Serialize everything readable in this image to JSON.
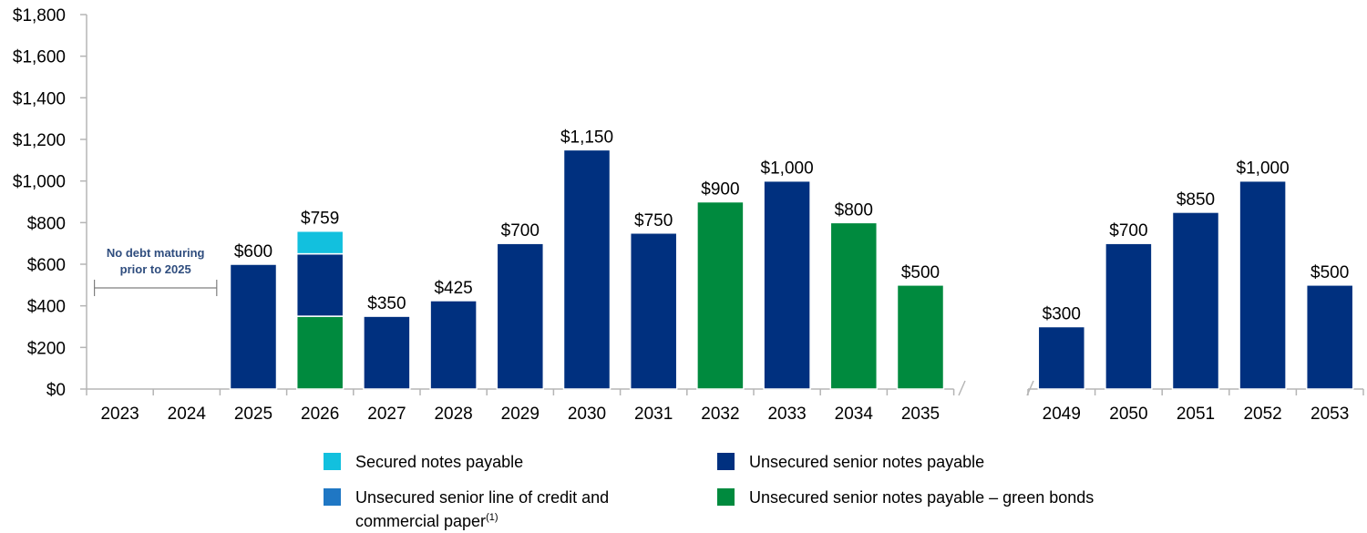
{
  "chart_data": {
    "type": "bar",
    "stacked": true,
    "title": "",
    "xlabel": "",
    "ylabel": "",
    "ylim": [
      0,
      1800
    ],
    "yticks": [
      "$0",
      "$200",
      "$400",
      "$600",
      "$800",
      "$1,000",
      "$1,200",
      "$1,400",
      "$1,600",
      "$1,800"
    ],
    "categories": [
      "2023",
      "2024",
      "2025",
      "2026",
      "2027",
      "2028",
      "2029",
      "2030",
      "2031",
      "2032",
      "2033",
      "2034",
      "2035",
      "2049",
      "2050",
      "2051",
      "2052",
      "2053"
    ],
    "axis_break_after": "2035",
    "series": [
      {
        "name": "Secured notes payable",
        "color": "#12c0de",
        "values": [
          0,
          0,
          0,
          109,
          0,
          0,
          0,
          0,
          0,
          0,
          0,
          0,
          0,
          0,
          0,
          0,
          0,
          0
        ]
      },
      {
        "name": "Unsecured senior line of credit and commercial paper",
        "color": "#1f77c4",
        "values": [
          0,
          0,
          0,
          0,
          0,
          0,
          0,
          0,
          0,
          0,
          0,
          0,
          0,
          0,
          0,
          0,
          0,
          0
        ]
      },
      {
        "name": "Unsecured senior notes payable",
        "color": "#00307f",
        "values": [
          0,
          0,
          600,
          300,
          350,
          425,
          700,
          1150,
          750,
          0,
          1000,
          0,
          0,
          300,
          700,
          850,
          1000,
          500
        ]
      },
      {
        "name": "Unsecured senior notes payable – green bonds",
        "color": "#008a3e",
        "values": [
          0,
          0,
          0,
          350,
          0,
          0,
          0,
          0,
          0,
          900,
          0,
          800,
          500,
          0,
          0,
          0,
          0,
          0
        ]
      }
    ],
    "stack_order": [
      3,
      2,
      1,
      0
    ],
    "data_labels": [
      "",
      "",
      "$600",
      "$759",
      "$350",
      "$425",
      "$700",
      "$1,150",
      "$750",
      "$900",
      "$1,000",
      "$800",
      "$500",
      "$300",
      "$700",
      "$850",
      "$1,000",
      "$500"
    ],
    "annotation": {
      "lines": [
        "No debt maturing",
        "prior to 2025"
      ],
      "from_category": "2023",
      "to_category": "2024"
    },
    "legend": {
      "position": "bottom",
      "items": [
        {
          "label": "Secured notes payable",
          "color": "#12c0de",
          "note": ""
        },
        {
          "label": "Unsecured senior notes payable",
          "color": "#00307f",
          "note": ""
        },
        {
          "label": "Unsecured senior line of credit and",
          "label_line2": "commercial paper",
          "color": "#1f77c4",
          "note": "(1)"
        },
        {
          "label": "Unsecured senior notes payable – green bonds",
          "color": "#008a3e",
          "note": ""
        }
      ]
    },
    "colors": {
      "axis": "#b5b5b5",
      "annotation": "#2f4d7e"
    }
  }
}
